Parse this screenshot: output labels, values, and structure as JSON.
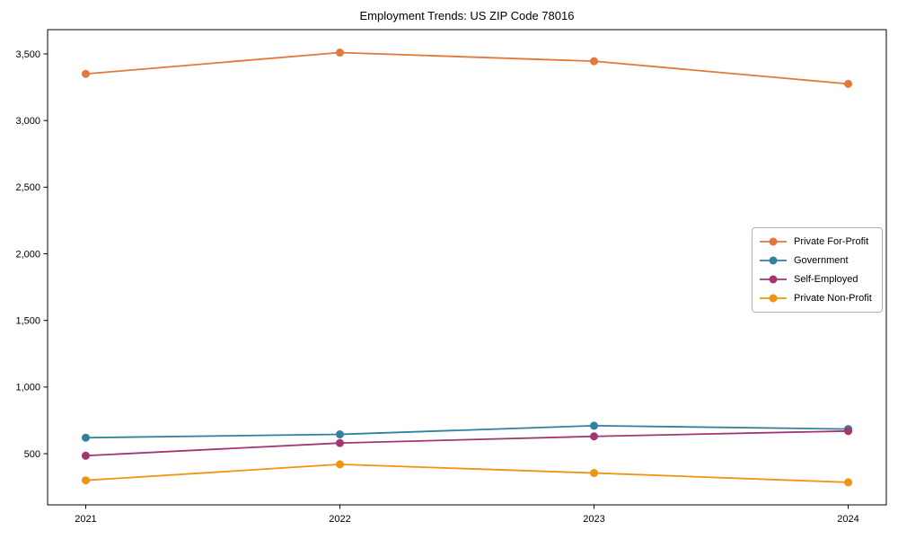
{
  "chart_data": {
    "type": "line",
    "title": "Employment Trends: US ZIP Code 78016",
    "categories": [
      "2021",
      "2022",
      "2023",
      "2024"
    ],
    "x": [
      2021,
      2022,
      2023,
      2024
    ],
    "series": [
      {
        "name": "Private For-Profit",
        "color": "#E0793A",
        "values": [
          3350,
          3510,
          3445,
          3275
        ]
      },
      {
        "name": "Government",
        "color": "#31819F",
        "values": [
          620,
          645,
          710,
          685
        ]
      },
      {
        "name": "Self-Employed",
        "color": "#A33670",
        "values": [
          485,
          580,
          630,
          670
        ]
      },
      {
        "name": "Private Non-Profit",
        "color": "#EE9410",
        "values": [
          300,
          420,
          355,
          285
        ]
      }
    ],
    "xlabel": "",
    "ylabel": "",
    "xlim": [
      2020.85,
      2024.15
    ],
    "ylim": [
      116,
      3682
    ],
    "yticks": [
      500,
      1000,
      1500,
      2000,
      2500,
      3000,
      3500
    ],
    "ytick_labels": [
      "500",
      "1,000",
      "1,500",
      "2,000",
      "2,500",
      "3,000",
      "3,500"
    ],
    "grid": false,
    "legend_position": "center-right",
    "marker": "circle",
    "frame_color": "#000000"
  }
}
